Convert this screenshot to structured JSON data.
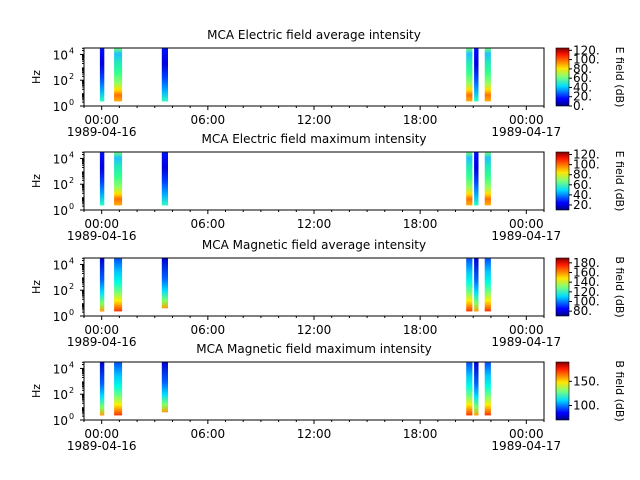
{
  "chart_data": {
    "type": "heatmap",
    "x_ticks": [
      "00:00",
      "06:00",
      "12:00",
      "18:00",
      "00:00"
    ],
    "x_start_label": "1989-04-16",
    "x_end_label": "1989-04-17",
    "x_range_hours": [
      -1,
      25
    ],
    "colormap": "jet",
    "panels": [
      {
        "title": "MCA  Electric field average intensity",
        "ylabel": "Hz",
        "ylim_log10": [
          0,
          4.5
        ],
        "y_ticks": [
          "10",
          "10",
          "10"
        ],
        "y_tick_exp": [
          "0",
          "2",
          "4"
        ],
        "colorbar_label": "E field (dB)",
        "colorbar_ticks": [
          "120.",
          "100.",
          "80.",
          "60.",
          "40.",
          "20.",
          "0."
        ],
        "colorbar_tick_values": [
          120,
          100,
          80,
          60,
          40,
          20,
          0
        ],
        "colorbar_range": [
          0,
          125
        ],
        "data_intervals_hours": [
          [
            -0.1,
            0.15
          ],
          [
            0.7,
            1.15
          ],
          [
            3.4,
            3.75
          ],
          [
            20.6,
            20.95
          ],
          [
            21.05,
            21.3
          ],
          [
            21.65,
            22.0
          ]
        ]
      },
      {
        "title": "MCA  Electric field maximum intensity",
        "ylabel": "Hz",
        "ylim_log10": [
          0,
          4.5
        ],
        "y_ticks": [
          "10",
          "10",
          "10"
        ],
        "y_tick_exp": [
          "0",
          "2",
          "4"
        ],
        "colorbar_label": "E field (dB)",
        "colorbar_ticks": [
          "120.",
          "100.",
          "80.",
          "60.",
          "40.",
          "20."
        ],
        "colorbar_tick_values": [
          120,
          100,
          80,
          60,
          40,
          20
        ],
        "colorbar_range": [
          10,
          125
        ],
        "data_intervals_hours": [
          [
            -0.1,
            0.15
          ],
          [
            0.7,
            1.15
          ],
          [
            3.4,
            3.75
          ],
          [
            20.6,
            20.95
          ],
          [
            21.05,
            21.3
          ],
          [
            21.65,
            22.0
          ]
        ]
      },
      {
        "title": "MCA  Magnetic field average intensity",
        "ylabel": "Hz",
        "ylim_log10": [
          0,
          4.5
        ],
        "y_ticks": [
          "10",
          "10",
          "10"
        ],
        "y_tick_exp": [
          "0",
          "2",
          "4"
        ],
        "colorbar_label": "B field (dB)",
        "colorbar_ticks": [
          "180.",
          "160.",
          "140.",
          "120.",
          "100.",
          "80."
        ],
        "colorbar_tick_values": [
          180,
          160,
          140,
          120,
          100,
          80
        ],
        "colorbar_range": [
          70,
          190
        ],
        "data_intervals_hours": [
          [
            -0.1,
            0.15
          ],
          [
            0.7,
            1.15
          ],
          [
            3.4,
            3.75
          ],
          [
            20.6,
            20.95
          ],
          [
            21.05,
            21.3
          ],
          [
            21.65,
            22.0
          ]
        ]
      },
      {
        "title": "MCA  Magnetic field maximum intensity",
        "ylabel": "Hz",
        "ylim_log10": [
          0,
          4.5
        ],
        "y_ticks": [
          "10",
          "10",
          "10"
        ],
        "y_tick_exp": [
          "0",
          "2",
          "4"
        ],
        "colorbar_label": "B field (dB)",
        "colorbar_ticks": [
          "150.",
          "100."
        ],
        "colorbar_tick_values": [
          150,
          100
        ],
        "colorbar_range": [
          70,
          190
        ],
        "data_intervals_hours": [
          [
            -0.1,
            0.15
          ],
          [
            0.7,
            1.15
          ],
          [
            3.4,
            3.75
          ],
          [
            20.6,
            20.95
          ],
          [
            21.05,
            21.3
          ],
          [
            21.65,
            22.0
          ]
        ]
      }
    ]
  }
}
